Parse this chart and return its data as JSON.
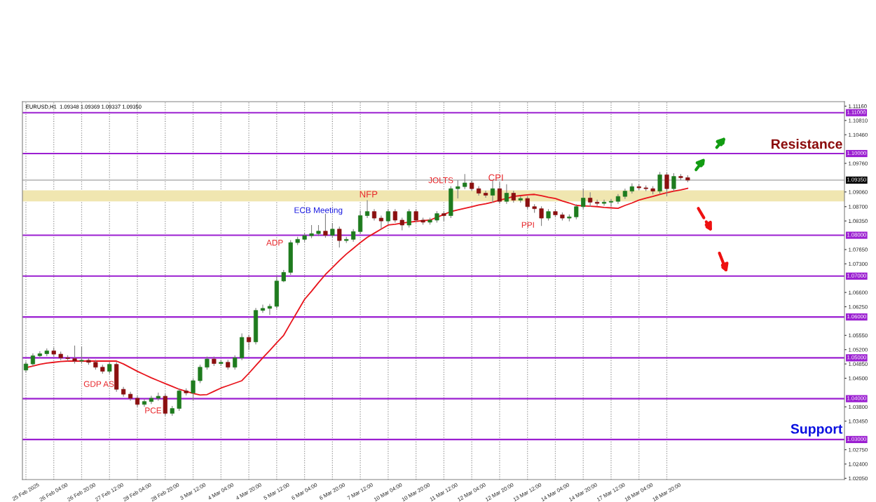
{
  "chart_data": {
    "type": "candlestick",
    "categories": [
      "25 Feb 2025",
      null,
      null,
      null,
      "26 Feb 04:00",
      null,
      null,
      null,
      "26 Feb 20:00",
      null,
      null,
      null,
      "27 Feb 12:00",
      null,
      null,
      null,
      "28 Feb 04:00",
      null,
      null,
      null,
      "28 Feb 20:00",
      null,
      null,
      null,
      "3 Mar 12:00",
      null,
      null,
      null,
      "4 Mar 04:00",
      null,
      null,
      null,
      "4 Mar 20:00",
      null,
      null,
      null,
      "5 Mar 12:00",
      null,
      null,
      null,
      "6 Mar 04:00",
      null,
      null,
      null,
      "6 Mar 20:00",
      null,
      null,
      null,
      "7 Mar 12:00",
      null,
      null,
      null,
      "10 Mar 04:00",
      null,
      null,
      null,
      "10 Mar 20:00",
      null,
      null,
      null,
      "11 Mar 12:00",
      null,
      null,
      null,
      "12 Mar 04:00",
      null,
      null,
      null,
      "12 Mar 20:00",
      null,
      null,
      null,
      "13 Mar 12:00",
      null,
      null,
      null,
      "14 Mar 04:00",
      null,
      null,
      null,
      "14 Mar 20:00",
      null,
      null,
      null,
      "17 Mar 12:00",
      null,
      null,
      null,
      "18 Mar 04:00",
      null,
      null,
      null,
      "18 Mar 20:00",
      null,
      null,
      null,
      null,
      null,
      null,
      null,
      null,
      null,
      null,
      null,
      null,
      null,
      null,
      null,
      null,
      null,
      null,
      null,
      null,
      null,
      null,
      null,
      null,
      null
    ],
    "series": [
      {
        "type": "candlestick",
        "ohlc": [
          [
            1.047,
            1.0491,
            1.0464,
            1.0485
          ],
          [
            1.0485,
            1.0511,
            1.0479,
            1.0505
          ],
          [
            1.0505,
            1.0516,
            1.0499,
            1.051
          ],
          [
            1.051,
            1.0523,
            1.0504,
            1.0517
          ],
          [
            1.0517,
            1.0525,
            1.0503,
            1.0509
          ],
          [
            1.0509,
            1.0515,
            1.0494,
            1.05
          ],
          [
            1.05,
            1.0506,
            1.0492,
            1.0498
          ],
          [
            1.0498,
            1.053,
            1.0486,
            1.0492
          ],
          [
            1.0492,
            1.0528,
            1.0486,
            1.0494
          ],
          [
            1.0494,
            1.05,
            1.0483,
            1.0489
          ],
          [
            1.0489,
            1.0495,
            1.0471,
            1.0477
          ],
          [
            1.0477,
            1.0483,
            1.0461,
            1.0467
          ],
          [
            1.0467,
            1.049,
            1.0461,
            1.0484
          ],
          [
            1.0484,
            1.049,
            1.0417,
            1.0423
          ],
          [
            1.0423,
            1.0429,
            1.0405,
            1.0411
          ],
          [
            1.0411,
            1.0417,
            1.0395,
            1.0401
          ],
          [
            1.0401,
            1.0407,
            1.038,
            1.0386
          ],
          [
            1.0386,
            1.0399,
            1.038,
            1.0393
          ],
          [
            1.0393,
            1.0407,
            1.0387,
            1.0401
          ],
          [
            1.0401,
            1.0415,
            1.0395,
            1.0406
          ],
          [
            1.0406,
            1.0412,
            1.0358,
            1.0364
          ],
          [
            1.0364,
            1.0382,
            1.0358,
            1.0376
          ],
          [
            1.0376,
            1.0425,
            1.037,
            1.0419
          ],
          [
            1.0419,
            1.0425,
            1.0408,
            1.0414
          ],
          [
            1.0414,
            1.045,
            1.0395,
            1.0444
          ],
          [
            1.0444,
            1.0483,
            1.0438,
            1.0477
          ],
          [
            1.0477,
            1.0503,
            1.0471,
            1.0497
          ],
          [
            1.0497,
            1.0503,
            1.048,
            1.0486
          ],
          [
            1.0486,
            1.0495,
            1.048,
            1.0489
          ],
          [
            1.0489,
            1.0495,
            1.0471,
            1.0477
          ],
          [
            1.0477,
            1.0506,
            1.0471,
            1.05
          ],
          [
            1.05,
            1.056,
            1.0494,
            1.055
          ],
          [
            1.055,
            1.0556,
            1.052,
            1.0539
          ],
          [
            1.0539,
            1.0622,
            1.0533,
            1.0616
          ],
          [
            1.0616,
            1.063,
            1.061,
            1.0621
          ],
          [
            1.0621,
            1.0632,
            1.0605,
            1.0626
          ],
          [
            1.0626,
            1.07,
            1.062,
            1.0688
          ],
          [
            1.0688,
            1.0715,
            1.0685,
            1.0709
          ],
          [
            1.0709,
            1.0788,
            1.0703,
            1.0782
          ],
          [
            1.0782,
            1.0796,
            1.0776,
            1.079
          ],
          [
            1.079,
            1.0805,
            1.0784,
            1.0799
          ],
          [
            1.0799,
            1.0825,
            1.0793,
            1.0804
          ],
          [
            1.0804,
            1.0825,
            1.0798,
            1.081
          ],
          [
            1.081,
            1.0853,
            1.0794,
            1.08
          ],
          [
            1.08,
            1.083,
            1.0794,
            1.0815
          ],
          [
            1.0815,
            1.0821,
            1.077,
            1.0787
          ],
          [
            1.0787,
            1.0796,
            1.0781,
            1.079
          ],
          [
            1.079,
            1.0815,
            1.0784,
            1.0809
          ],
          [
            1.0809,
            1.086,
            1.0803,
            1.0848
          ],
          [
            1.0848,
            1.0886,
            1.0842,
            1.0858
          ],
          [
            1.0858,
            1.0864,
            1.0836,
            1.0842
          ],
          [
            1.0842,
            1.0848,
            1.0815,
            1.0835
          ],
          [
            1.0835,
            1.0864,
            1.0829,
            1.0858
          ],
          [
            1.0858,
            1.0864,
            1.0831,
            1.0837
          ],
          [
            1.0837,
            1.0843,
            1.0812,
            1.0825
          ],
          [
            1.0825,
            1.0864,
            1.0819,
            1.0858
          ],
          [
            1.0858,
            1.0864,
            1.0831,
            1.0837
          ],
          [
            1.0837,
            1.0843,
            1.0826,
            1.0832
          ],
          [
            1.0832,
            1.0843,
            1.0826,
            1.0837
          ],
          [
            1.0837,
            1.0859,
            1.0831,
            1.0853
          ],
          [
            1.0853,
            1.0859,
            1.0835,
            1.0848
          ],
          [
            1.0848,
            1.092,
            1.0842,
            1.0914
          ],
          [
            1.0914,
            1.0935,
            1.089,
            1.0919
          ],
          [
            1.0919,
            1.095,
            1.0913,
            1.0928
          ],
          [
            1.0928,
            1.0934,
            1.0908,
            1.0914
          ],
          [
            1.0914,
            1.092,
            1.0897,
            1.0903
          ],
          [
            1.0903,
            1.0909,
            1.0892,
            1.0898
          ],
          [
            1.0898,
            1.0935,
            1.088,
            1.0914
          ],
          [
            1.0914,
            1.093,
            1.0877,
            1.0883
          ],
          [
            1.0883,
            1.0925,
            1.0877,
            1.0903
          ],
          [
            1.0903,
            1.0909,
            1.088,
            1.0886
          ],
          [
            1.0886,
            1.0896,
            1.088,
            1.089
          ],
          [
            1.089,
            1.0896,
            1.0864,
            1.087
          ],
          [
            1.087,
            1.0876,
            1.0855,
            1.0865
          ],
          [
            1.0865,
            1.0871,
            1.0823,
            1.0842
          ],
          [
            1.0842,
            1.0864,
            1.0836,
            1.0858
          ],
          [
            1.0858,
            1.0864,
            1.0844,
            1.085
          ],
          [
            1.085,
            1.0856,
            1.0836,
            1.0842
          ],
          [
            1.0842,
            1.0851,
            1.0834,
            1.0845
          ],
          [
            1.0845,
            1.0876,
            1.0839,
            1.087
          ],
          [
            1.087,
            1.0914,
            1.0864,
            1.0891
          ],
          [
            1.0891,
            1.0905,
            1.087,
            1.0881
          ],
          [
            1.0881,
            1.0887,
            1.0872,
            1.0878
          ],
          [
            1.0878,
            1.0887,
            1.0872,
            1.0881
          ],
          [
            1.0881,
            1.0889,
            1.087,
            1.0883
          ],
          [
            1.0883,
            1.0901,
            1.0877,
            1.0895
          ],
          [
            1.0895,
            1.0914,
            1.0889,
            1.0908
          ],
          [
            1.0908,
            1.0927,
            1.0902,
            1.0919
          ],
          [
            1.0919,
            1.0925,
            1.091,
            1.0916
          ],
          [
            1.0916,
            1.0922,
            1.0908,
            1.0914
          ],
          [
            1.0914,
            1.092,
            1.09,
            1.0908
          ],
          [
            1.0908,
            1.0955,
            1.0902,
            1.0948
          ],
          [
            1.0948,
            1.0954,
            1.0895,
            1.0914
          ],
          [
            1.0914,
            1.0952,
            1.0908,
            1.0944
          ],
          [
            1.0944,
            1.095,
            1.0935,
            1.0941
          ],
          [
            1.0941,
            1.0947,
            1.093,
            1.0935
          ],
          null,
          null,
          null,
          null,
          null,
          null,
          null,
          null,
          null,
          null,
          null,
          null,
          null,
          null,
          null,
          null,
          null,
          null,
          null,
          null,
          null,
          null
        ]
      },
      {
        "type": "line",
        "color": "#e8141c",
        "values": [
          1.0476,
          1.048,
          1.0484,
          1.0487,
          1.0489,
          1.0491,
          1.0492,
          1.0492,
          1.0492,
          1.0492,
          1.0492,
          1.0492,
          1.0492,
          1.0492,
          1.0485,
          1.0476,
          1.0467,
          1.0459,
          1.0451,
          1.0444,
          1.0437,
          1.043,
          1.0423,
          1.0418,
          1.0413,
          1.0409,
          1.041,
          1.0418,
          1.0426,
          1.0432,
          1.0438,
          1.0444,
          1.0462,
          1.0481,
          1.05,
          1.0518,
          1.0537,
          1.0555,
          1.0585,
          1.0614,
          1.0643,
          1.0663,
          1.0684,
          1.0704,
          1.0721,
          1.0738,
          1.0754,
          1.0768,
          1.0782,
          1.0795,
          1.0805,
          1.0815,
          1.0825,
          1.0827,
          1.083,
          1.0832,
          1.0834,
          1.0836,
          1.0837,
          1.0844,
          1.0851,
          1.0858,
          1.0862,
          1.0866,
          1.087,
          1.0874,
          1.0877,
          1.0881,
          1.0886,
          1.089,
          1.0895,
          1.0897,
          1.0899,
          1.09,
          1.0897,
          1.0893,
          1.089,
          1.0884,
          1.0879,
          1.0873,
          1.0872,
          1.0871,
          1.087,
          1.0868,
          1.0867,
          1.0866,
          1.0873,
          1.0879,
          1.0886,
          1.0891,
          1.0895,
          1.09,
          1.0904,
          1.0908,
          1.0911,
          1.0915,
          null,
          null,
          null,
          null,
          null,
          null,
          null,
          null,
          null,
          null,
          null,
          null,
          null,
          null,
          null,
          null,
          null,
          null,
          null,
          null,
          null,
          null
        ]
      }
    ],
    "ylim": [
      1.0202,
      1.1127
    ],
    "yticks": [
      {
        "value": 1.1116,
        "label": "1.11160"
      },
      {
        "value": 1.1081,
        "label": "1.10810"
      },
      {
        "value": 1.1046,
        "label": "1.10460"
      },
      {
        "value": 1.0976,
        "label": "1.09760"
      },
      {
        "value": 1.0906,
        "label": "1.09060"
      },
      {
        "value": 1.087,
        "label": "1.08700"
      },
      {
        "value": 1.0835,
        "label": "1.08350"
      },
      {
        "value": 1.0765,
        "label": "1.07650"
      },
      {
        "value": 1.073,
        "label": "1.07300"
      },
      {
        "value": 1.066,
        "label": "1.06600"
      },
      {
        "value": 1.0625,
        "label": "1.06250"
      },
      {
        "value": 1.0555,
        "label": "1.05550"
      },
      {
        "value": 1.052,
        "label": "1.05200"
      },
      {
        "value": 1.0485,
        "label": "1.04850"
      },
      {
        "value": 1.045,
        "label": "1.04500"
      },
      {
        "value": 1.038,
        "label": "1.03800"
      },
      {
        "value": 1.0345,
        "label": "1.03450"
      },
      {
        "value": 1.0275,
        "label": "1.02750"
      },
      {
        "value": 1.024,
        "label": "1.02400"
      },
      {
        "value": 1.0205,
        "label": "1.02050"
      }
    ],
    "grid": "x",
    "ref_lines": [
      {
        "axis": "y",
        "value": 1.11,
        "label": "1.11000",
        "color": "#9b1fd1"
      },
      {
        "axis": "y",
        "value": 1.1,
        "label": "1.10000",
        "color": "#9b1fd1"
      },
      {
        "axis": "y",
        "value": 1.08,
        "label": "1.08000",
        "color": "#9b1fd1"
      },
      {
        "axis": "y",
        "value": 1.07,
        "label": "1.07000",
        "color": "#9b1fd1"
      },
      {
        "axis": "y",
        "value": 1.06,
        "label": "1.06000",
        "color": "#9b1fd1"
      },
      {
        "axis": "y",
        "value": 1.05,
        "label": "1.05000",
        "color": "#9b1fd1"
      },
      {
        "axis": "y",
        "value": 1.04,
        "label": "1.04000",
        "color": "#9b1fd1"
      },
      {
        "axis": "y",
        "value": 1.03,
        "label": "1.03000",
        "color": "#9b1fd1"
      },
      {
        "axis": "y",
        "value": 1.0935,
        "label": "1.09350",
        "color": "#c8c8c8"
      }
    ],
    "bands": [
      {
        "axis": "y",
        "from": 1.0883,
        "to": 1.091,
        "color": "#f0e6b0"
      }
    ],
    "annotations": [
      "EURUSD,H1  1.09348 1.09369 1.09337 1.09350",
      "GDP AS",
      "PCE",
      "ADP",
      "ECB Meeting",
      "NFP",
      "JOLTS",
      "CPI",
      "PPI",
      "Resistance",
      "Support"
    ]
  }
}
